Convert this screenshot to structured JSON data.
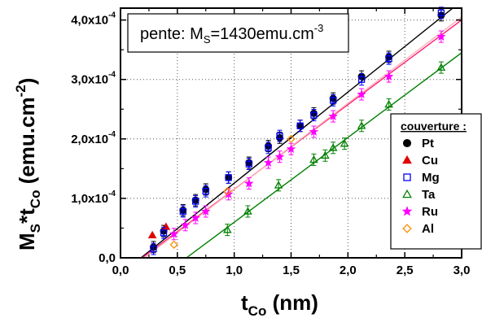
{
  "chart_data": {
    "type": "scatter",
    "xlabel": {
      "main": "t",
      "sub": "Co",
      "rest": " (nm)"
    },
    "ylabel": {
      "main": "M",
      "sub1": "S",
      "mid": "*t",
      "sub2": "Co",
      "rest": " (emu.cm",
      "sup": "-2",
      "end": ")"
    },
    "annotation": {
      "prefix": "pente: M",
      "sub": "S",
      "rest": "=1430emu.cm",
      "sup": "-3"
    },
    "legend_title": "couverture :",
    "xlim": [
      0.0,
      3.0
    ],
    "ylim": [
      0.0,
      0.00042
    ],
    "xticks": [
      0.0,
      0.5,
      1.0,
      1.5,
      2.0,
      2.5,
      3.0
    ],
    "xtick_labels": [
      "0,0",
      "0,5",
      "1,0",
      "1,5",
      "2,0",
      "2,5",
      "3,0"
    ],
    "yticks": [
      0.0,
      0.0001,
      0.0002,
      0.0003,
      0.0004
    ],
    "ytick_labels": [
      {
        "mant": "0,0",
        "exp": ""
      },
      {
        "mant": "1,0x10",
        "exp": "-4"
      },
      {
        "mant": "2,0x10",
        "exp": "-4"
      },
      {
        "mant": "3,0x10",
        "exp": "-4"
      },
      {
        "mant": "4,0x10",
        "exp": "-4"
      }
    ],
    "grid": "dotted, at major ticks",
    "legend_position": "right",
    "series": [
      {
        "name": "Pt",
        "marker": "circle",
        "filled": true,
        "color": "#000000",
        "points": [
          [
            0.29,
            1.8e-05
          ],
          [
            0.38,
            4.5e-05
          ],
          [
            0.55,
            8e-05
          ],
          [
            0.66,
            9.7e-05
          ],
          [
            0.75,
            0.000115
          ],
          [
            0.95,
            0.000135
          ],
          [
            1.13,
            0.00016
          ],
          [
            1.3,
            0.000188
          ],
          [
            1.4,
            0.000202
          ],
          [
            1.58,
            0.000222
          ],
          [
            1.7,
            0.000243
          ],
          [
            1.87,
            0.000268
          ],
          [
            2.12,
            0.000305
          ],
          [
            2.36,
            0.000338
          ],
          [
            2.82,
            0.000408
          ]
        ]
      },
      {
        "name": "Cu",
        "marker": "triangle",
        "filled": true,
        "color": "#e00000",
        "points": [
          [
            0.28,
            3.8e-05
          ],
          [
            0.4,
            5.2e-05
          ]
        ]
      },
      {
        "name": "Mg",
        "marker": "square",
        "filled": false,
        "color": "#0000ff",
        "points": [
          [
            0.29,
            1.5e-05
          ],
          [
            0.38,
            4.2e-05
          ],
          [
            0.55,
            7.8e-05
          ],
          [
            0.66,
            9.5e-05
          ],
          [
            0.75,
            0.000112
          ],
          [
            0.95,
            0.000135
          ],
          [
            1.13,
            0.000158
          ],
          [
            1.3,
            0.000185
          ],
          [
            1.4,
            0.000205
          ],
          [
            1.58,
            0.000222
          ],
          [
            1.7,
            0.00024
          ],
          [
            1.87,
            0.000265
          ],
          [
            2.12,
            0.0003
          ],
          [
            2.36,
            0.000335
          ],
          [
            2.82,
            0.000412
          ]
        ]
      },
      {
        "name": "Ta",
        "marker": "triangle",
        "filled": false,
        "color": "#008000",
        "points": [
          [
            0.94,
            4.7e-05
          ],
          [
            1.12,
            7.8e-05
          ],
          [
            1.39,
            0.000122
          ],
          [
            1.7,
            0.000165
          ],
          [
            1.8,
            0.000172
          ],
          [
            1.87,
            0.000185
          ],
          [
            1.97,
            0.000192
          ],
          [
            2.12,
            0.000222
          ],
          [
            2.36,
            0.000258
          ],
          [
            2.82,
            0.00032
          ]
        ]
      },
      {
        "name": "Ru",
        "marker": "star",
        "filled": true,
        "color": "#ff00ff",
        "points": [
          [
            0.47,
            4e-05
          ],
          [
            0.57,
            5.5e-05
          ],
          [
            0.66,
            6.7e-05
          ],
          [
            0.75,
            7.8e-05
          ],
          [
            0.95,
            0.000107
          ],
          [
            1.13,
            0.000125
          ],
          [
            1.3,
            0.00016
          ],
          [
            1.4,
            0.00017
          ],
          [
            1.5,
            0.000183
          ],
          [
            1.7,
            0.000212
          ],
          [
            1.87,
            0.000238
          ],
          [
            2.12,
            0.000275
          ],
          [
            2.36,
            0.000305
          ],
          [
            2.82,
            0.000372
          ]
        ]
      },
      {
        "name": "Al",
        "marker": "diamond",
        "filled": false,
        "color": "#ff8c00",
        "points": [
          [
            0.47,
            2.2e-05
          ],
          [
            0.94,
            0.000112
          ],
          [
            1.5,
            0.0002
          ]
        ]
      }
    ],
    "fit_lines": [
      {
        "color": "#000000",
        "from": [
          0.18,
          0.0
        ],
        "to": [
          3.0,
          0.000432
        ]
      },
      {
        "color": "#ff2080",
        "from": [
          0.19,
          0.0
        ],
        "to": [
          3.0,
          0.0004
        ]
      },
      {
        "color": "#ffb0b0",
        "from": [
          0.21,
          0.0
        ],
        "to": [
          3.0,
          0.000405
        ]
      },
      {
        "color": "#008000",
        "from": [
          0.58,
          0.0
        ],
        "to": [
          3.0,
          0.000345
        ]
      }
    ]
  }
}
